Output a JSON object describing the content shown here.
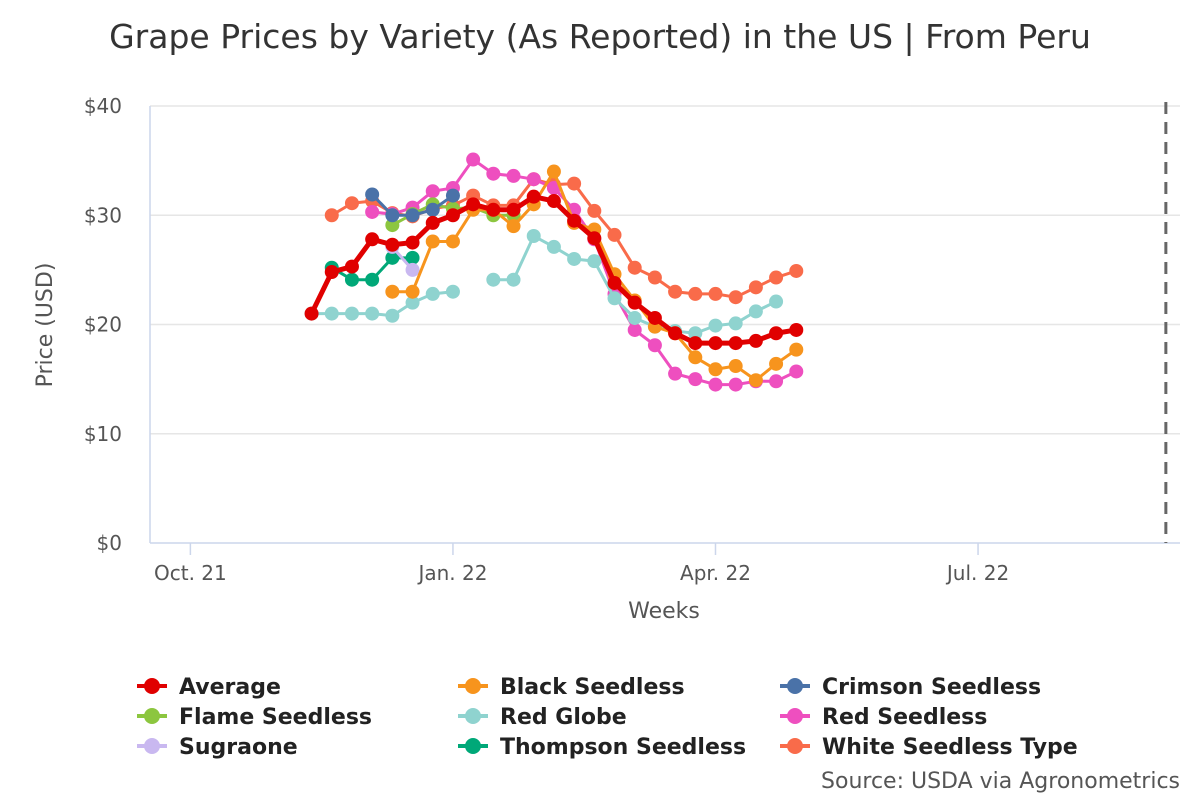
{
  "chart_data": {
    "type": "line",
    "title": "Grape Prices by Variety (As Reported) in the US | From Peru",
    "xlabel": "Weeks",
    "ylabel": "Price (USD)",
    "ylim": [
      0,
      40
    ],
    "yticks": [
      0,
      10,
      20,
      30,
      40
    ],
    "ytick_labels": [
      "$0",
      "$10",
      "$20",
      "$30",
      "$40"
    ],
    "xlim": [
      -2,
      49
    ],
    "xticks": [
      0,
      13,
      26,
      39
    ],
    "xtick_labels": [
      "Oct. 21",
      "Jan. 22",
      "Apr. 22",
      "Jul. 22"
    ],
    "x_unit": "weeks since Oct. 2021",
    "forecast_line_x": 48.3,
    "grid": true,
    "legend_position": "bottom",
    "source": "Source: USDA via Agronometrics",
    "series": [
      {
        "name": "Average",
        "color": "#e00000",
        "width": 5,
        "x": [
          6,
          7,
          8,
          9,
          10,
          11,
          12,
          13,
          14,
          15,
          16,
          17,
          18,
          19,
          20,
          21,
          22,
          23,
          24,
          25,
          26,
          27,
          28,
          29,
          30
        ],
        "y": [
          21.0,
          24.8,
          25.3,
          27.8,
          27.3,
          27.5,
          29.3,
          30.0,
          31.0,
          30.5,
          30.5,
          31.7,
          31.3,
          29.5,
          27.9,
          23.8,
          22.0,
          20.6,
          19.2,
          18.3,
          18.3,
          18.3,
          18.5,
          19.2,
          19.5
        ]
      },
      {
        "name": "Black Seedless",
        "color": "#f7941d",
        "width": 3,
        "x": [
          10,
          11,
          12,
          13,
          14,
          15,
          16,
          17,
          18,
          19,
          20,
          21,
          22,
          23,
          24,
          25,
          26,
          27,
          28,
          29,
          30
        ],
        "y": [
          23.0,
          23.0,
          27.6,
          27.6,
          30.5,
          30.5,
          29.0,
          31.0,
          34.0,
          29.3,
          28.7,
          24.6,
          22.2,
          19.8,
          19.2,
          17.0,
          15.9,
          16.2,
          14.9,
          16.4,
          17.7
        ]
      },
      {
        "name": "Crimson Seedless",
        "color": "#4a72a8",
        "width": 3,
        "x": [
          9,
          10,
          11,
          12,
          13
        ],
        "y": [
          31.9,
          30.0,
          30.0,
          30.5,
          31.8
        ]
      },
      {
        "name": "Flame Seedless",
        "color": "#8cc63f",
        "width": 3,
        "x": [
          10,
          11,
          12,
          13,
          14,
          15,
          16
        ],
        "y": [
          29.1,
          30.1,
          31.0,
          30.6,
          30.7,
          30.0,
          30.0
        ]
      },
      {
        "name": "Red Globe",
        "color": "#8fd3cf",
        "width": 3,
        "x": [
          6,
          7,
          8,
          9,
          10,
          11,
          12,
          13,
          15,
          16,
          17,
          18,
          19,
          20,
          21,
          22,
          23,
          24,
          25,
          26,
          27,
          28,
          29
        ],
        "y": [
          21.0,
          21.0,
          21.0,
          21.0,
          20.8,
          22.0,
          22.8,
          23.0,
          24.1,
          24.1,
          28.1,
          27.1,
          26.0,
          25.8,
          22.4,
          20.6,
          19.8,
          19.4,
          19.2,
          19.9,
          20.1,
          21.2,
          22.1
        ]
      },
      {
        "name": "Red Seedless",
        "color": "#ee4fbf",
        "width": 3,
        "x": [
          9,
          10,
          11,
          12,
          13,
          14,
          15,
          16,
          17,
          18,
          19,
          20,
          21,
          22,
          23,
          24,
          25,
          26,
          27,
          28,
          29,
          30
        ],
        "y": [
          30.3,
          30.1,
          30.7,
          32.2,
          32.5,
          35.1,
          33.8,
          33.6,
          33.3,
          32.5,
          30.5,
          27.8,
          22.8,
          19.5,
          18.1,
          15.5,
          15.0,
          14.5,
          14.5,
          14.8,
          14.8,
          15.7
        ]
      },
      {
        "name": "Sugraone",
        "color": "#c9b8f0",
        "width": 3,
        "x": [
          10,
          11
        ],
        "y": [
          27.1,
          25.0
        ]
      },
      {
        "name": "Thompson Seedless",
        "color": "#00a878",
        "width": 3,
        "x": [
          7,
          8,
          9,
          10,
          11
        ],
        "y": [
          25.2,
          24.1,
          24.1,
          26.1,
          26.1
        ]
      },
      {
        "name": "White Seedless Type",
        "color": "#f96b4a",
        "width": 3,
        "x": [
          7,
          8,
          9,
          10,
          11,
          12,
          13,
          14,
          15,
          16,
          17,
          18,
          19,
          20,
          21,
          22,
          23,
          24,
          25,
          26,
          27,
          28,
          29,
          30
        ],
        "y": [
          30.0,
          31.1,
          31.3,
          30.2,
          29.9,
          30.6,
          30.9,
          31.8,
          30.9,
          30.9,
          33.3,
          32.8,
          32.9,
          30.4,
          28.2,
          25.2,
          24.3,
          23.0,
          22.8,
          22.8,
          22.5,
          23.4,
          24.3,
          24.9
        ]
      }
    ]
  }
}
